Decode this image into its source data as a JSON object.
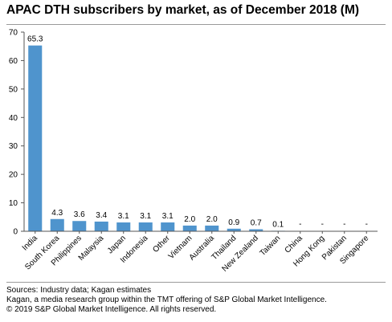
{
  "title": "APAC DTH subscribers by market, as of December 2018 (M)",
  "chart_data": {
    "type": "bar",
    "categories": [
      "India",
      "South Korea",
      "Philippines",
      "Malaysia",
      "Japan",
      "Indonesia",
      "Other",
      "Vietnam",
      "Australia",
      "Thailand",
      "New Zealand",
      "Taiwan",
      "China",
      "Hong Kong",
      "Pakistan",
      "Singapore"
    ],
    "values": [
      65.3,
      4.3,
      3.6,
      3.4,
      3.1,
      3.1,
      3.1,
      2.0,
      2.0,
      0.9,
      0.7,
      0.1,
      null,
      null,
      null,
      null
    ],
    "data_labels": [
      "65.3",
      "4.3",
      "3.6",
      "3.4",
      "3.1",
      "3.1",
      "3.1",
      "2.0",
      "2.0",
      "0.9",
      "0.7",
      "0.1",
      "-",
      "-",
      "-",
      "-"
    ],
    "y_ticks": [
      "0",
      "10",
      "20",
      "30",
      "40",
      "50",
      "60",
      "70"
    ],
    "ylim": [
      0,
      70
    ],
    "grid": false,
    "legend": "none",
    "bar_color": "#4f94cd",
    "xlabel": "",
    "ylabel": ""
  },
  "footer": {
    "sources": "Sources: Industry data; Kagan estimates",
    "note": "Kagan, a media research group within the TMT offering of S&P Global Market Intelligence.",
    "copyright": "© 2019 S&P Global Market Intelligence. All rights reserved."
  }
}
